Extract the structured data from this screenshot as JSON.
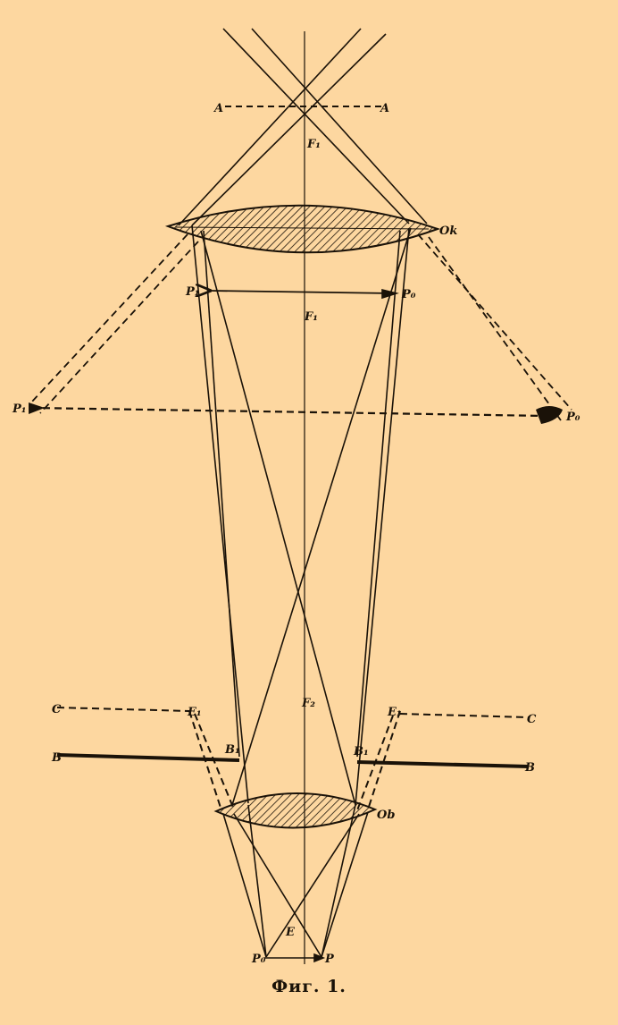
{
  "figure": {
    "caption": "Фиг. 1.",
    "colors": {
      "background": "#fdd7a0",
      "ink": "#1a1208"
    },
    "labels": {
      "A_left": "A",
      "A_right": "A",
      "F1_upper": "F₁",
      "F1_lower": "F₁",
      "Ok": "Ok",
      "Ob": "Ob",
      "P1_left": "P₁",
      "P0_right": "P₀",
      "P1_far_left": "P₁",
      "P0_far_right": "P₀",
      "C_left": "C",
      "C_right": "C",
      "B_left": "B",
      "B_right": "B",
      "B1_left": "B₁",
      "B1_right": "B₁",
      "E1_left": "E₁",
      "E1_right": "E₁",
      "F2": "F₂",
      "E": "E",
      "P0_bottom": "P₀",
      "P_bottom": "P"
    }
  }
}
